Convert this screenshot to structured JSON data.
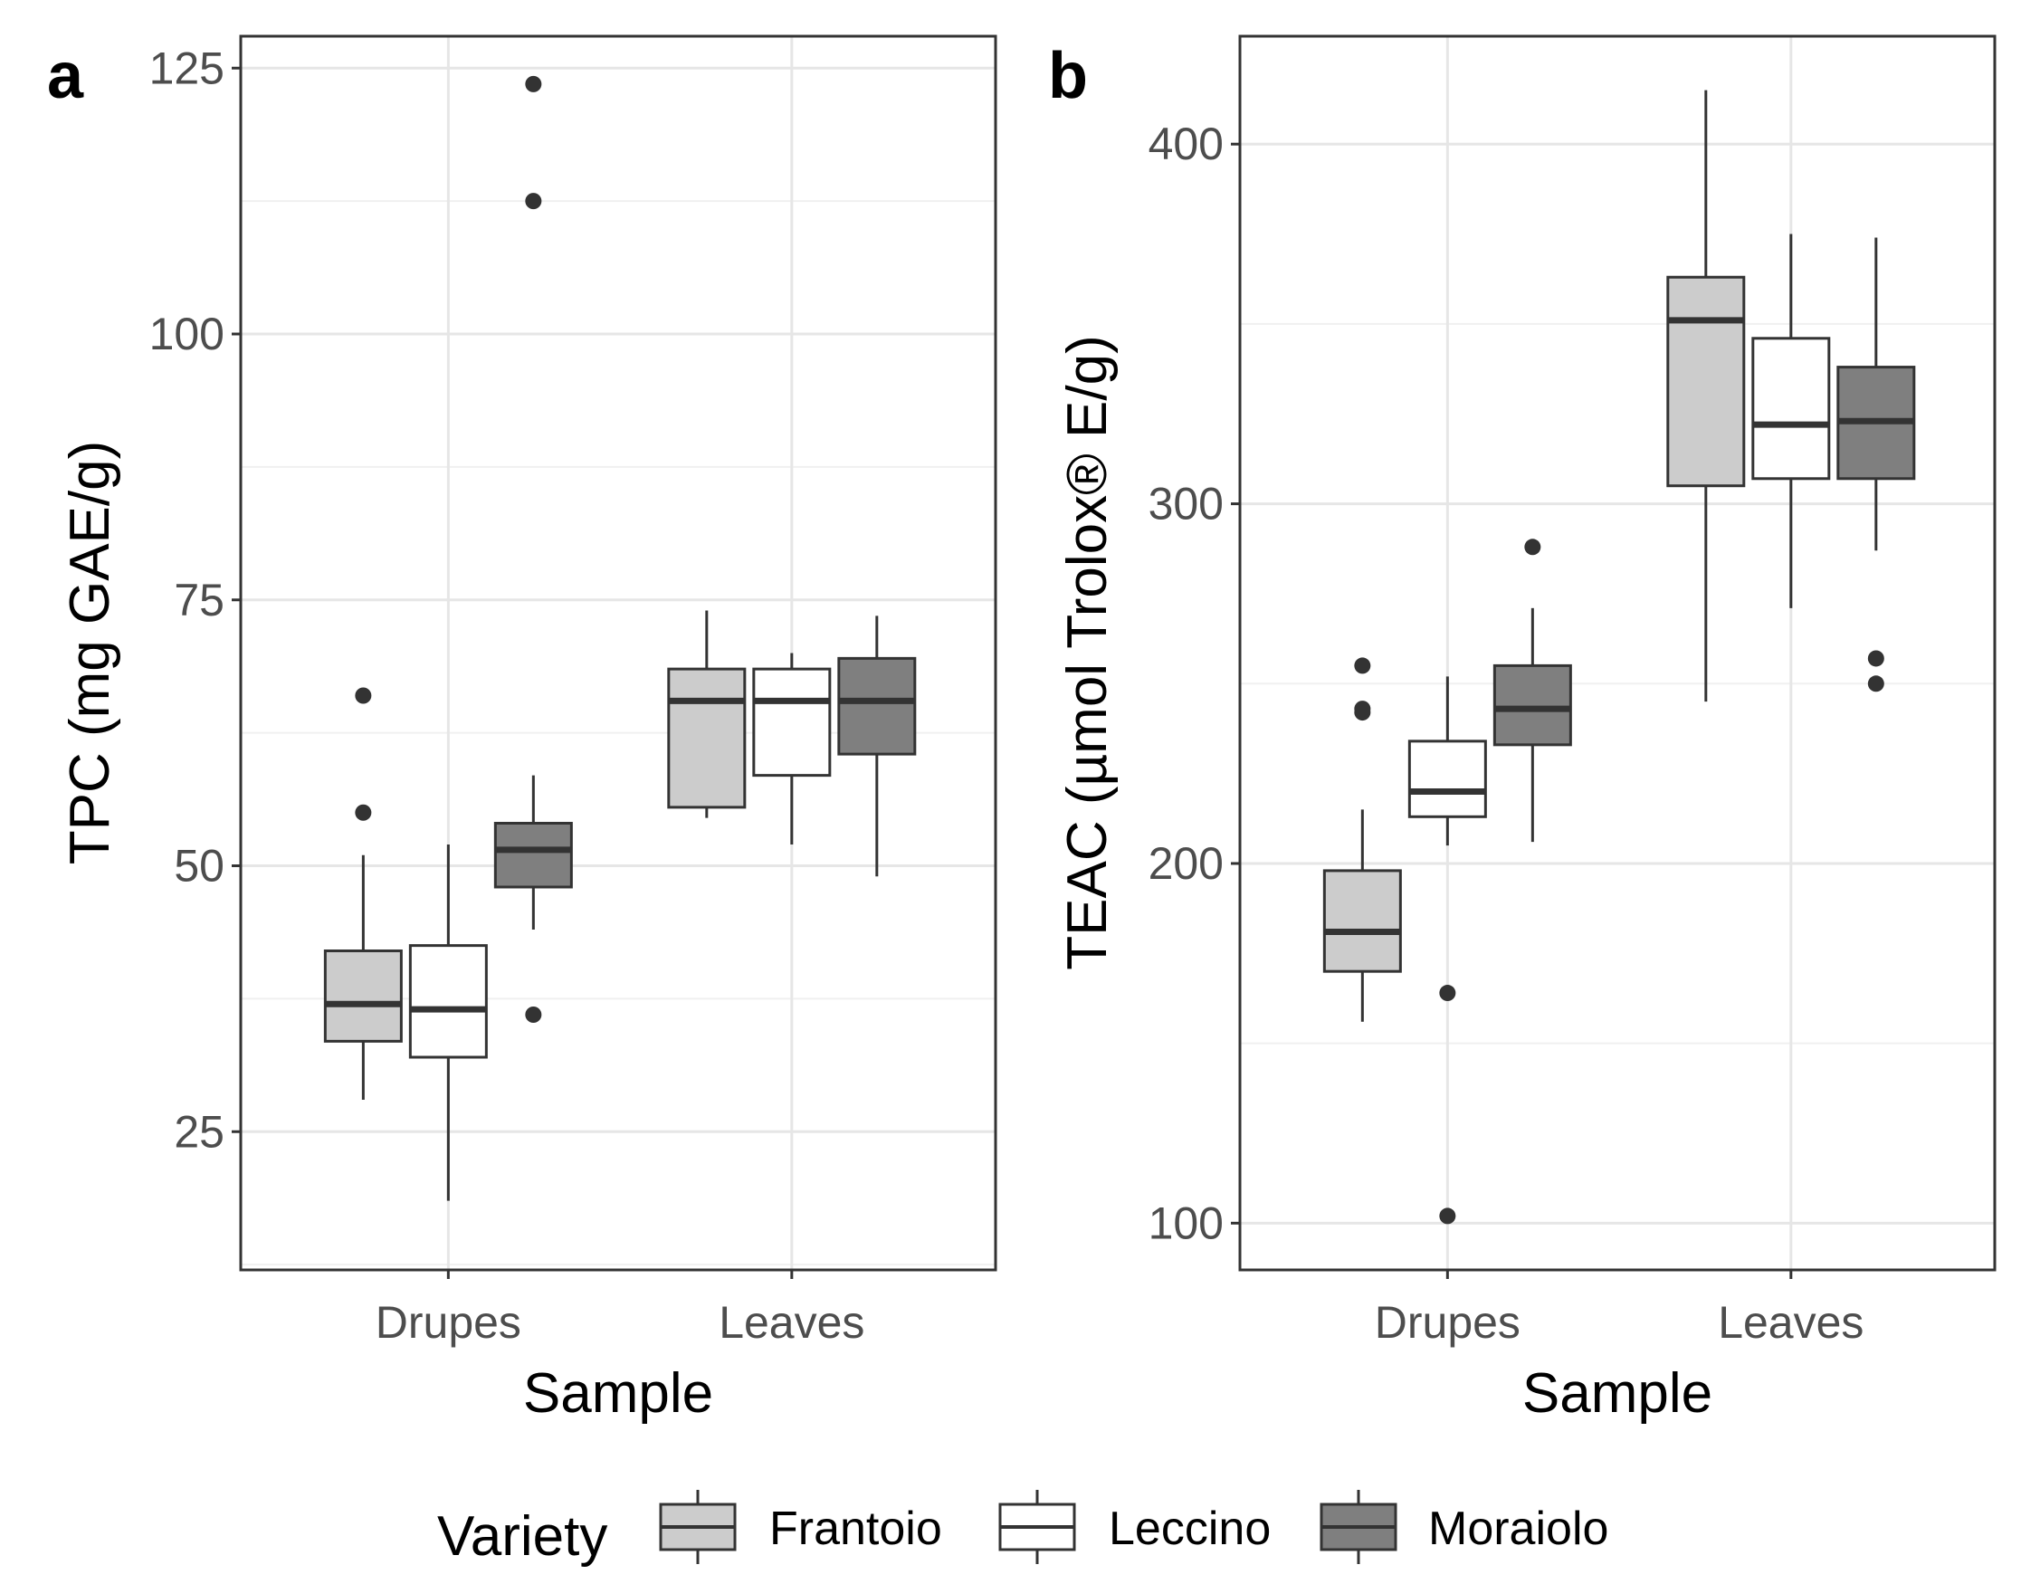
{
  "chart_data": [
    {
      "type": "boxplot",
      "panel_label": "a",
      "xlabel": "Sample",
      "ylabel": "TPC (mg GAE/g)",
      "categories": [
        "Drupes",
        "Leaves"
      ],
      "ylim": [
        12,
        128
      ],
      "yticks": [
        25,
        50,
        75,
        100,
        125
      ],
      "grid": true,
      "series": [
        {
          "name": "Frantoio",
          "color": "#cccccc",
          "boxes": [
            {
              "whisker_low": 28,
              "q1": 33.5,
              "median": 37,
              "q3": 42,
              "whisker_high": 51,
              "outliers": [
                55,
                66
              ]
            },
            {
              "whisker_low": 54.5,
              "q1": 55.5,
              "median": 65.5,
              "q3": 68.5,
              "whisker_high": 74,
              "outliers": []
            }
          ]
        },
        {
          "name": "Leccino",
          "color": "#ffffff",
          "boxes": [
            {
              "whisker_low": 18.5,
              "q1": 32,
              "median": 36.5,
              "q3": 42.5,
              "whisker_high": 52,
              "outliers": []
            },
            {
              "whisker_low": 52,
              "q1": 58.5,
              "median": 65.5,
              "q3": 68.5,
              "whisker_high": 70,
              "outliers": []
            }
          ]
        },
        {
          "name": "Moraiolo",
          "color": "#7f7f7f",
          "boxes": [
            {
              "whisker_low": 44,
              "q1": 48,
              "median": 51.5,
              "q3": 54,
              "whisker_high": 58.5,
              "outliers": [
                36,
                112.5,
                123.5
              ]
            },
            {
              "whisker_low": 49,
              "q1": 60.5,
              "median": 65.5,
              "q3": 69.5,
              "whisker_high": 73.5,
              "outliers": []
            }
          ]
        }
      ]
    },
    {
      "type": "boxplot",
      "panel_label": "b",
      "xlabel": "Sample",
      "ylabel": "TEAC (µmol Trolox® E/g)",
      "categories": [
        "Drupes",
        "Leaves"
      ],
      "ylim": [
        87,
        430
      ],
      "yticks": [
        100,
        200,
        300,
        400
      ],
      "grid": true,
      "series": [
        {
          "name": "Frantoio",
          "color": "#cccccc",
          "boxes": [
            {
              "whisker_low": 156,
              "q1": 170,
              "median": 181,
              "q3": 198,
              "whisker_high": 215,
              "outliers": [
                242,
                243,
                255
              ]
            },
            {
              "whisker_low": 245,
              "q1": 305,
              "median": 351,
              "q3": 363,
              "whisker_high": 415,
              "outliers": []
            }
          ]
        },
        {
          "name": "Leccino",
          "color": "#ffffff",
          "boxes": [
            {
              "whisker_low": 205,
              "q1": 213,
              "median": 220,
              "q3": 234,
              "whisker_high": 252,
              "outliers": [
                102,
                164
              ]
            },
            {
              "whisker_low": 271,
              "q1": 307,
              "median": 322,
              "q3": 346,
              "whisker_high": 375,
              "outliers": []
            }
          ]
        },
        {
          "name": "Moraiolo",
          "color": "#7f7f7f",
          "boxes": [
            {
              "whisker_low": 206,
              "q1": 233,
              "median": 243,
              "q3": 255,
              "whisker_high": 271,
              "outliers": [
                288
              ]
            },
            {
              "whisker_low": 287,
              "q1": 307,
              "median": 323,
              "q3": 338,
              "whisker_high": 374,
              "outliers": [
                250,
                257
              ]
            }
          ]
        }
      ]
    }
  ],
  "legend": {
    "title": "Variety",
    "position": "bottom",
    "items": [
      {
        "label": "Frantoio",
        "color": "#cccccc"
      },
      {
        "label": "Leccino",
        "color": "#ffffff"
      },
      {
        "label": "Moraiolo",
        "color": "#7f7f7f"
      }
    ]
  }
}
